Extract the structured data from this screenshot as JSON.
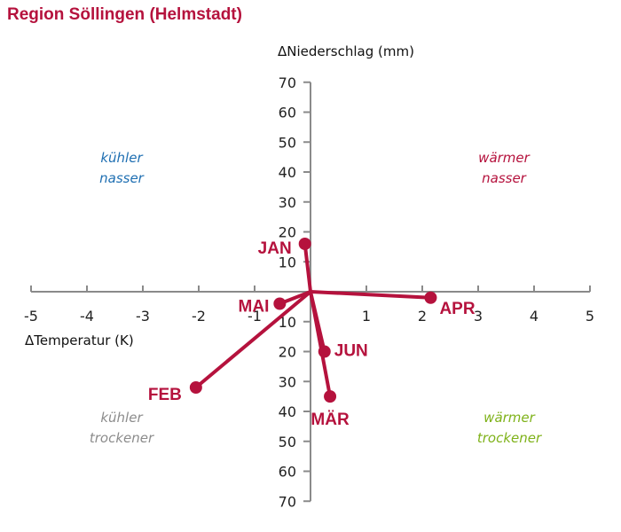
{
  "title": "Region Söllingen (Helmstadt)",
  "chart_data": {
    "type": "scatter",
    "xlabel": "ΔTemperatur (K)",
    "ylabel": "ΔNiederschlag (mm)",
    "xlim": [
      -5,
      5
    ],
    "ylim": [
      -70,
      70
    ],
    "xticks": [
      -5,
      -4,
      -3,
      -2,
      -1,
      1,
      2,
      3,
      4,
      5
    ],
    "yticks": [
      70,
      60,
      50,
      40,
      30,
      20,
      10,
      -10,
      -20,
      -30,
      -40,
      -50,
      -60,
      -70
    ],
    "ytick_labels": [
      "70",
      "60",
      "50",
      "40",
      "30",
      "20",
      "10",
      "10",
      "20",
      "30",
      "40",
      "50",
      "60",
      "70"
    ],
    "grid": false,
    "origin": [
      0,
      0
    ],
    "points": [
      {
        "label": "JAN",
        "x": -0.1,
        "y": 16
      },
      {
        "label": "FEB",
        "x": -2.05,
        "y": -32
      },
      {
        "label": "MÄR",
        "x": 0.35,
        "y": -35
      },
      {
        "label": "APR",
        "x": 2.15,
        "y": -2
      },
      {
        "label": "MAI",
        "x": -0.55,
        "y": -4
      },
      {
        "label": "JUN",
        "x": 0.25,
        "y": -20
      }
    ],
    "quadrants": [
      {
        "lines": [
          "kühler",
          "nasser"
        ],
        "color": "#1f6fb2",
        "pos": "top-left"
      },
      {
        "lines": [
          "wärmer",
          "nasser"
        ],
        "color": "#b5123d",
        "pos": "top-right"
      },
      {
        "lines": [
          "kühler",
          "trockener"
        ],
        "color": "#8c8c8c",
        "pos": "bottom-left"
      },
      {
        "lines": [
          "wärmer",
          "trockener"
        ],
        "color": "#7fb21a",
        "pos": "bottom-right"
      }
    ],
    "series_color": "#b5123d",
    "axis_color": "#8a8a8a"
  }
}
